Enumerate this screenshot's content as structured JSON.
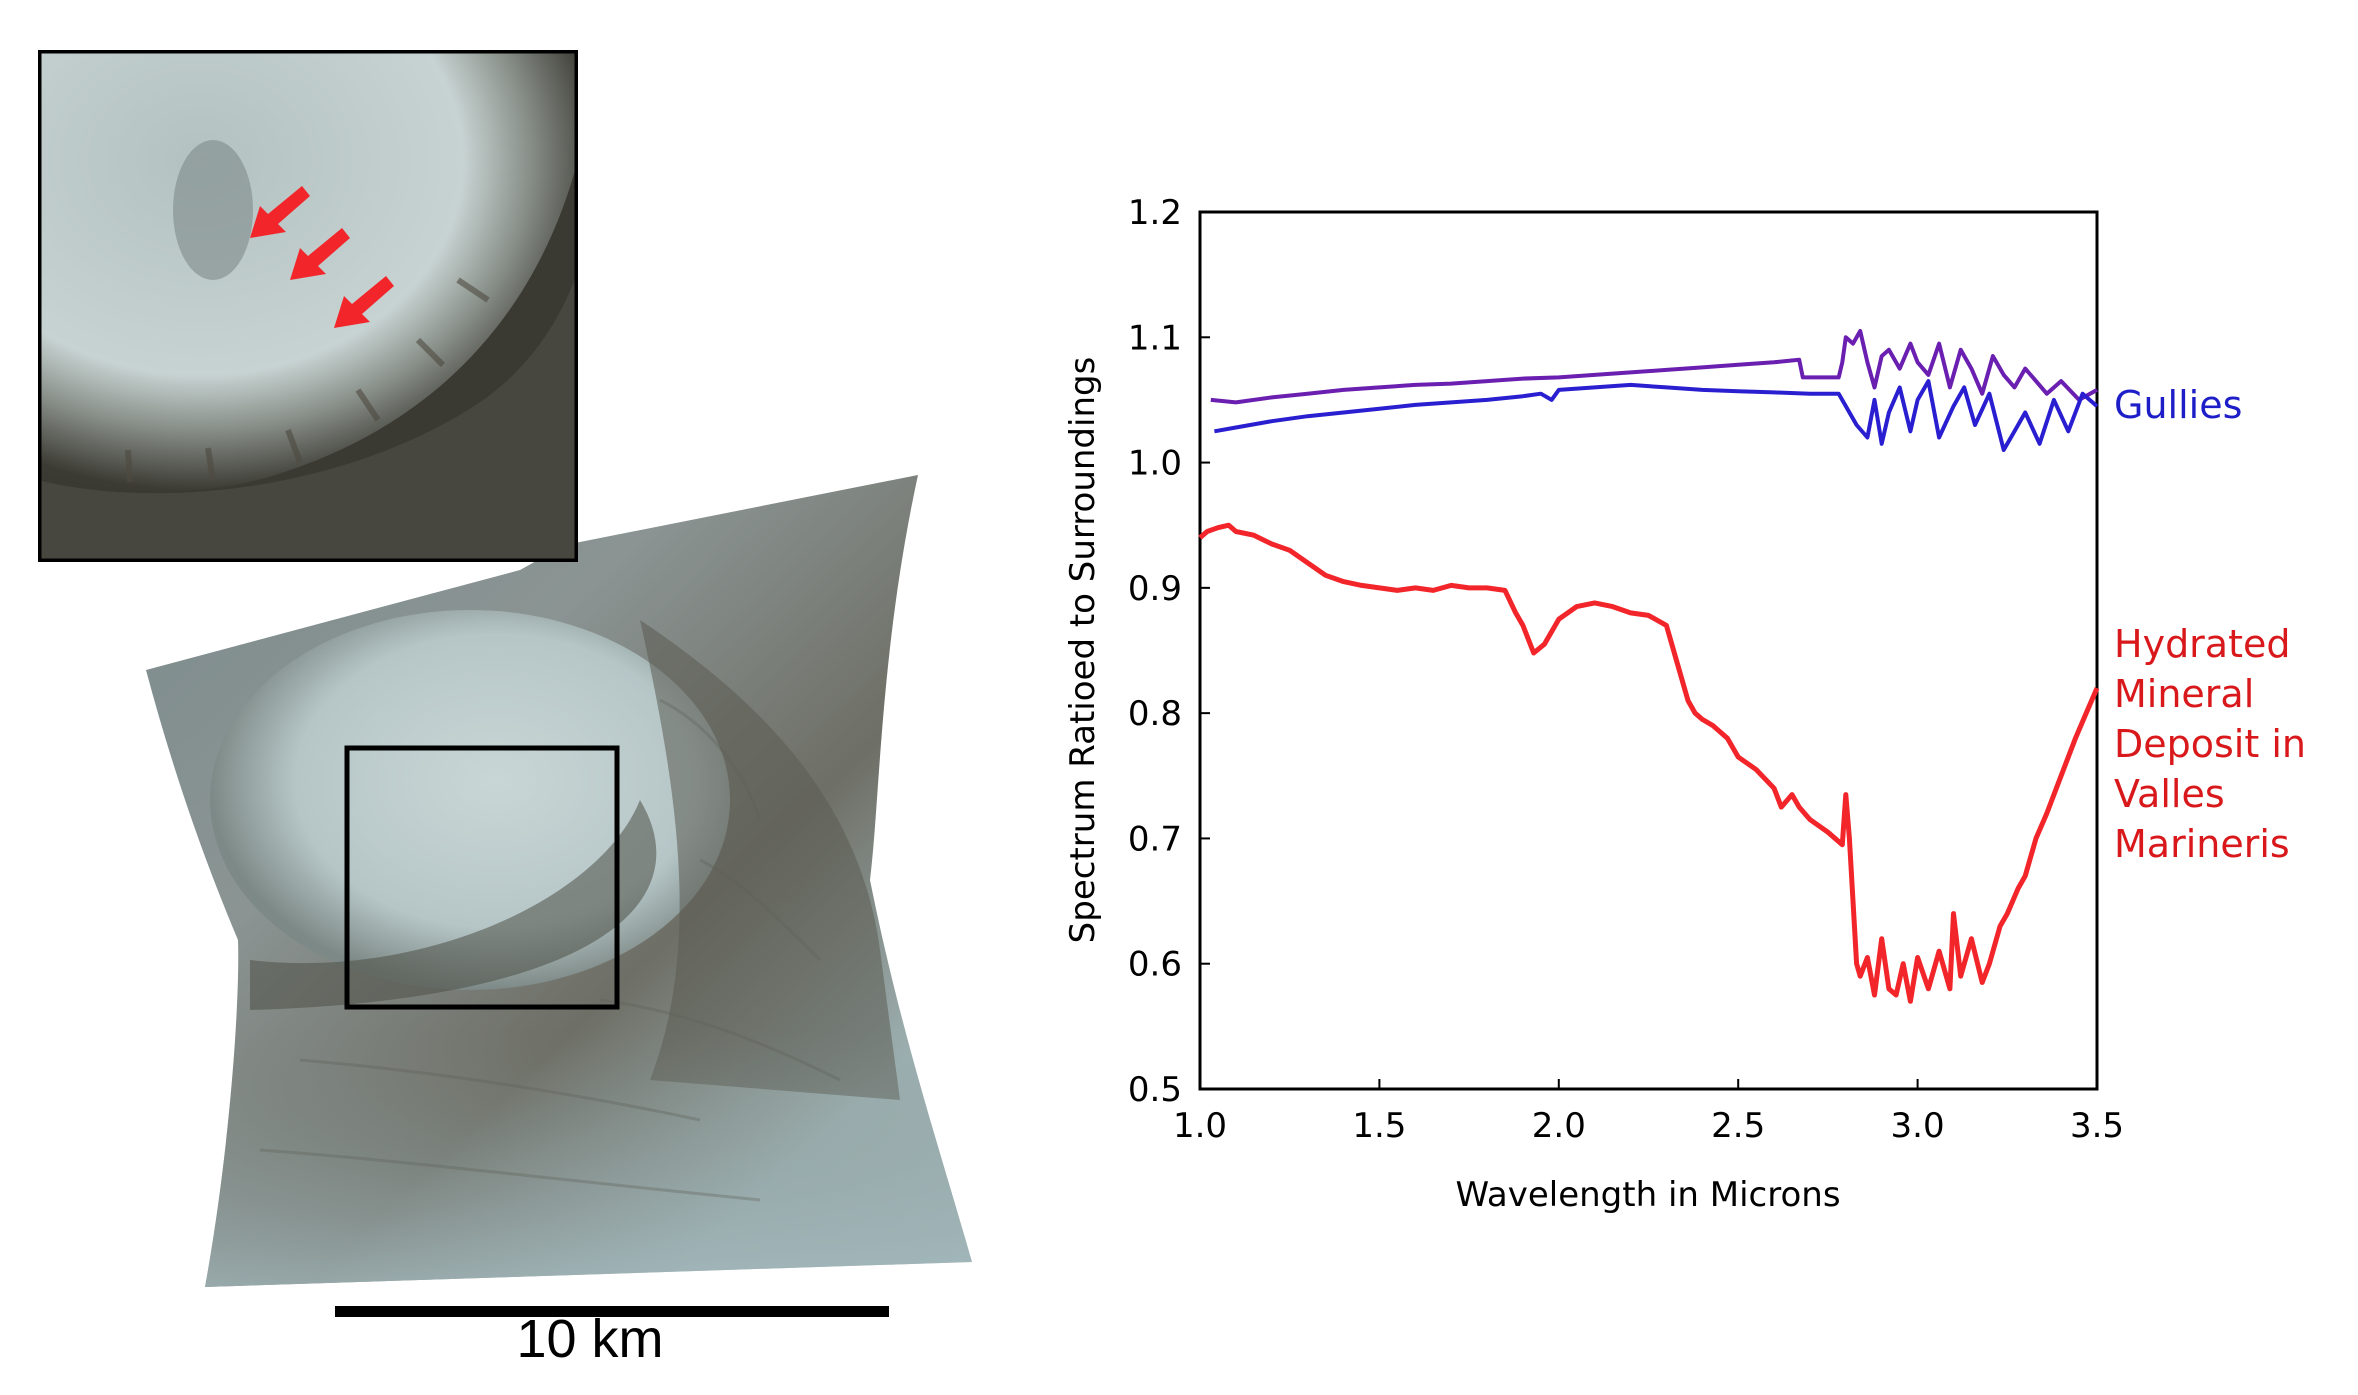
{
  "images": {
    "inset_alt": "CRISM inset of crater wall gullies",
    "main_alt": "CRISM image of crater"
  },
  "scale_bar": {
    "label": "10 km"
  },
  "colors": {
    "gullies_a": "#6a1fb0",
    "gullies_b": "#2a1fd0",
    "hydrated": "#f2262a",
    "arrow": "#f2262a",
    "gullies_label": "#1e1ec8",
    "hydrated_label": "#d8181a"
  },
  "chart_data": {
    "type": "line",
    "xlabel": "Wavelength in Microns",
    "ylabel": "Spectrum Ratioed to Surroundings",
    "xlim": [
      1.0,
      3.5
    ],
    "ylim": [
      0.5,
      1.2
    ],
    "xticks": [
      1.0,
      1.5,
      2.0,
      2.5,
      3.0,
      3.5
    ],
    "xtick_labels": [
      "1.0",
      "1.5",
      "2.0",
      "2.5",
      "3.0",
      "3.5"
    ],
    "yticks": [
      0.5,
      0.6,
      0.7,
      0.8,
      0.9,
      1.0,
      1.1,
      1.2
    ],
    "ytick_labels": [
      "0.5",
      "0.6",
      "0.7",
      "0.8",
      "0.9",
      "1.0",
      "1.1",
      "1.2"
    ],
    "series": [
      {
        "name": "Gullies (upper)",
        "color": "#6a1fb0",
        "x": [
          1.03,
          1.1,
          1.2,
          1.3,
          1.4,
          1.5,
          1.6,
          1.7,
          1.8,
          1.9,
          2.0,
          2.1,
          2.2,
          2.3,
          2.4,
          2.5,
          2.6,
          2.67,
          2.68,
          2.78,
          2.79,
          2.8,
          2.82,
          2.84,
          2.86,
          2.88,
          2.9,
          2.92,
          2.95,
          2.98,
          3.0,
          3.03,
          3.06,
          3.09,
          3.12,
          3.15,
          3.18,
          3.21,
          3.24,
          3.27,
          3.3,
          3.33,
          3.36,
          3.4,
          3.45,
          3.5
        ],
        "y": [
          1.05,
          1.048,
          1.052,
          1.055,
          1.058,
          1.06,
          1.062,
          1.063,
          1.065,
          1.067,
          1.068,
          1.07,
          1.072,
          1.074,
          1.076,
          1.078,
          1.08,
          1.082,
          1.068,
          1.068,
          1.08,
          1.1,
          1.095,
          1.105,
          1.08,
          1.06,
          1.085,
          1.09,
          1.075,
          1.095,
          1.08,
          1.07,
          1.095,
          1.06,
          1.09,
          1.075,
          1.055,
          1.085,
          1.07,
          1.06,
          1.075,
          1.065,
          1.055,
          1.065,
          1.05,
          1.058
        ]
      },
      {
        "name": "Gullies (lower)",
        "color": "#2a1fd0",
        "x": [
          1.04,
          1.1,
          1.2,
          1.3,
          1.4,
          1.5,
          1.6,
          1.7,
          1.8,
          1.9,
          1.95,
          1.98,
          2.0,
          2.1,
          2.2,
          2.3,
          2.4,
          2.5,
          2.6,
          2.7,
          2.78,
          2.83,
          2.86,
          2.88,
          2.9,
          2.92,
          2.95,
          2.98,
          3.0,
          3.03,
          3.06,
          3.1,
          3.13,
          3.16,
          3.2,
          3.24,
          3.27,
          3.3,
          3.34,
          3.38,
          3.42,
          3.46,
          3.5
        ],
        "y": [
          1.025,
          1.028,
          1.033,
          1.037,
          1.04,
          1.043,
          1.046,
          1.048,
          1.05,
          1.053,
          1.055,
          1.05,
          1.058,
          1.06,
          1.062,
          1.06,
          1.058,
          1.057,
          1.056,
          1.055,
          1.055,
          1.03,
          1.02,
          1.05,
          1.015,
          1.04,
          1.06,
          1.025,
          1.05,
          1.065,
          1.02,
          1.045,
          1.06,
          1.03,
          1.055,
          1.01,
          1.025,
          1.04,
          1.015,
          1.05,
          1.025,
          1.055,
          1.045
        ]
      },
      {
        "name": "Hydrated Mineral Deposit in Valles Marineris",
        "color": "#f2262a",
        "x": [
          1.0,
          1.02,
          1.05,
          1.08,
          1.1,
          1.15,
          1.2,
          1.25,
          1.3,
          1.35,
          1.4,
          1.45,
          1.5,
          1.55,
          1.6,
          1.65,
          1.7,
          1.75,
          1.8,
          1.85,
          1.88,
          1.9,
          1.93,
          1.96,
          2.0,
          2.05,
          2.1,
          2.15,
          2.2,
          2.25,
          2.3,
          2.33,
          2.36,
          2.38,
          2.4,
          2.43,
          2.47,
          2.5,
          2.55,
          2.6,
          2.62,
          2.65,
          2.67,
          2.7,
          2.75,
          2.79,
          2.8,
          2.81,
          2.82,
          2.83,
          2.84,
          2.86,
          2.88,
          2.9,
          2.92,
          2.94,
          2.96,
          2.98,
          3.0,
          3.03,
          3.06,
          3.09,
          3.1,
          3.12,
          3.15,
          3.18,
          3.2,
          3.23,
          3.25,
          3.28,
          3.3,
          3.33,
          3.36,
          3.4,
          3.44,
          3.47,
          3.5
        ],
        "y": [
          0.94,
          0.945,
          0.948,
          0.95,
          0.945,
          0.942,
          0.935,
          0.93,
          0.92,
          0.91,
          0.905,
          0.902,
          0.9,
          0.898,
          0.9,
          0.898,
          0.902,
          0.9,
          0.9,
          0.898,
          0.88,
          0.87,
          0.848,
          0.855,
          0.875,
          0.885,
          0.888,
          0.885,
          0.88,
          0.878,
          0.87,
          0.84,
          0.81,
          0.8,
          0.795,
          0.79,
          0.78,
          0.765,
          0.755,
          0.74,
          0.725,
          0.735,
          0.725,
          0.715,
          0.705,
          0.695,
          0.735,
          0.7,
          0.65,
          0.6,
          0.59,
          0.605,
          0.575,
          0.62,
          0.58,
          0.575,
          0.6,
          0.57,
          0.605,
          0.58,
          0.61,
          0.58,
          0.64,
          0.59,
          0.62,
          0.585,
          0.6,
          0.63,
          0.64,
          0.66,
          0.67,
          0.7,
          0.72,
          0.75,
          0.78,
          0.8,
          0.82
        ]
      }
    ],
    "labels": {
      "gullies": "Gullies",
      "hydrated": [
        "Hydrated",
        "Mineral",
        "Deposit in",
        "Valles",
        "Marineris"
      ]
    }
  }
}
